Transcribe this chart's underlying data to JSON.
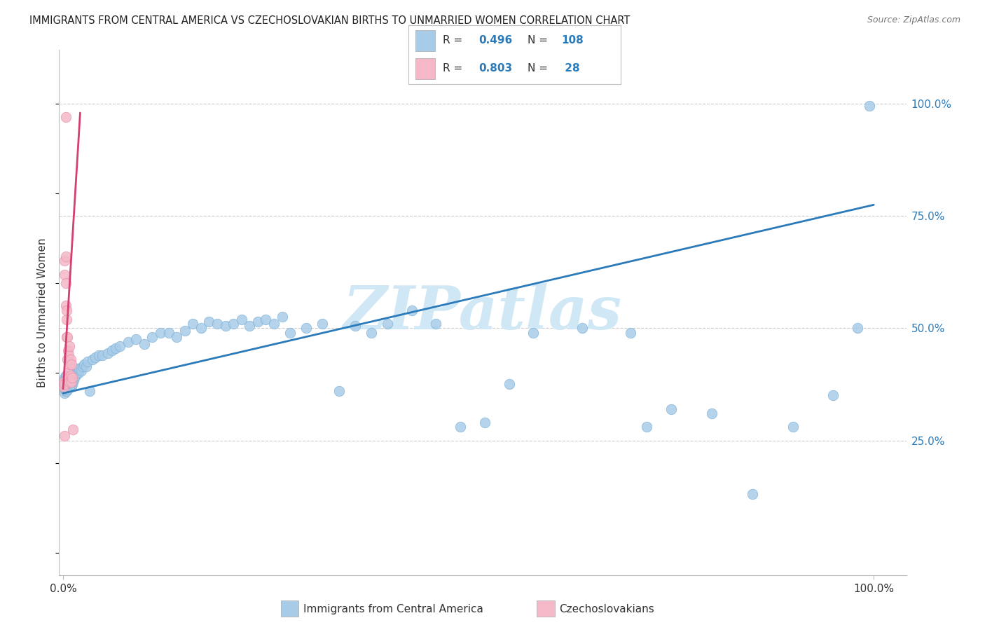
{
  "title": "IMMIGRANTS FROM CENTRAL AMERICA VS CZECHOSLOVAKIAN BIRTHS TO UNMARRIED WOMEN CORRELATION CHART",
  "source": "Source: ZipAtlas.com",
  "ylabel": "Births to Unmarried Women",
  "ytick_vals": [
    0.25,
    0.5,
    0.75,
    1.0
  ],
  "ytick_labels": [
    "25.0%",
    "50.0%",
    "75.0%",
    "100.0%"
  ],
  "xtick_vals": [
    0.0,
    1.0
  ],
  "xtick_labels": [
    "0.0%",
    "100.0%"
  ],
  "legend_blue_r": "0.496",
  "legend_blue_n": "108",
  "legend_pink_r": "0.803",
  "legend_pink_n": " 28",
  "legend_blue_label": "Immigrants from Central America",
  "legend_pink_label": "Czechoslovakians",
  "blue_color": "#a8cce8",
  "pink_color": "#f4b8c8",
  "blue_edge_color": "#7aafd4",
  "pink_edge_color": "#e88ba8",
  "blue_line_color": "#2b7bba",
  "pink_line_color": "#d44070",
  "watermark_text": "ZIPatlas",
  "watermark_color": "#d0e8f5",
  "blue_line_x0": 0.0,
  "blue_line_x1": 1.0,
  "blue_line_y0": 0.355,
  "blue_line_y1": 0.775,
  "pink_line_x0": 0.0,
  "pink_line_x1": 0.021,
  "pink_line_y0": 0.365,
  "pink_line_y1": 0.98,
  "xlim_min": -0.005,
  "xlim_max": 1.04,
  "ylim_min": -0.05,
  "ylim_max": 1.12,
  "blue_x": [
    0.001,
    0.001,
    0.001,
    0.002,
    0.002,
    0.002,
    0.002,
    0.002,
    0.002,
    0.003,
    0.003,
    0.003,
    0.003,
    0.003,
    0.003,
    0.004,
    0.004,
    0.004,
    0.004,
    0.004,
    0.005,
    0.005,
    0.005,
    0.005,
    0.006,
    0.006,
    0.006,
    0.006,
    0.007,
    0.007,
    0.007,
    0.008,
    0.008,
    0.008,
    0.009,
    0.009,
    0.01,
    0.01,
    0.01,
    0.011,
    0.011,
    0.012,
    0.012,
    0.013,
    0.014,
    0.015,
    0.016,
    0.017,
    0.018,
    0.019,
    0.02,
    0.022,
    0.024,
    0.026,
    0.028,
    0.03,
    0.033,
    0.036,
    0.04,
    0.044,
    0.048,
    0.055,
    0.06,
    0.065,
    0.07,
    0.08,
    0.09,
    0.1,
    0.11,
    0.12,
    0.13,
    0.14,
    0.15,
    0.16,
    0.17,
    0.18,
    0.19,
    0.2,
    0.21,
    0.22,
    0.23,
    0.24,
    0.25,
    0.26,
    0.27,
    0.28,
    0.3,
    0.32,
    0.34,
    0.36,
    0.38,
    0.4,
    0.43,
    0.46,
    0.49,
    0.52,
    0.55,
    0.58,
    0.64,
    0.7,
    0.72,
    0.75,
    0.8,
    0.85,
    0.9,
    0.95,
    0.98,
    0.995
  ],
  "blue_y": [
    0.37,
    0.375,
    0.38,
    0.355,
    0.365,
    0.37,
    0.38,
    0.385,
    0.39,
    0.36,
    0.37,
    0.375,
    0.38,
    0.39,
    0.395,
    0.36,
    0.365,
    0.375,
    0.385,
    0.395,
    0.365,
    0.37,
    0.38,
    0.39,
    0.365,
    0.375,
    0.385,
    0.395,
    0.37,
    0.38,
    0.395,
    0.37,
    0.375,
    0.39,
    0.375,
    0.385,
    0.37,
    0.38,
    0.39,
    0.375,
    0.395,
    0.38,
    0.395,
    0.385,
    0.39,
    0.395,
    0.4,
    0.405,
    0.41,
    0.4,
    0.41,
    0.405,
    0.415,
    0.42,
    0.415,
    0.425,
    0.36,
    0.43,
    0.435,
    0.44,
    0.44,
    0.445,
    0.45,
    0.455,
    0.46,
    0.47,
    0.475,
    0.465,
    0.48,
    0.49,
    0.49,
    0.48,
    0.495,
    0.51,
    0.5,
    0.515,
    0.51,
    0.505,
    0.51,
    0.52,
    0.505,
    0.515,
    0.52,
    0.51,
    0.525,
    0.49,
    0.5,
    0.51,
    0.36,
    0.505,
    0.49,
    0.51,
    0.54,
    0.51,
    0.28,
    0.29,
    0.375,
    0.49,
    0.5,
    0.49,
    0.28,
    0.32,
    0.31,
    0.13,
    0.28,
    0.35,
    0.5,
    0.995
  ],
  "pink_x": [
    0.001,
    0.001,
    0.002,
    0.002,
    0.002,
    0.003,
    0.003,
    0.003,
    0.003,
    0.004,
    0.004,
    0.004,
    0.005,
    0.005,
    0.006,
    0.006,
    0.007,
    0.007,
    0.008,
    0.008,
    0.008,
    0.009,
    0.009,
    0.01,
    0.01,
    0.011,
    0.012,
    0.002
  ],
  "pink_y": [
    0.37,
    0.38,
    0.375,
    0.62,
    0.65,
    0.55,
    0.6,
    0.66,
    0.97,
    0.48,
    0.52,
    0.54,
    0.43,
    0.48,
    0.4,
    0.45,
    0.39,
    0.44,
    0.38,
    0.42,
    0.46,
    0.395,
    0.43,
    0.38,
    0.42,
    0.39,
    0.275,
    0.26
  ]
}
